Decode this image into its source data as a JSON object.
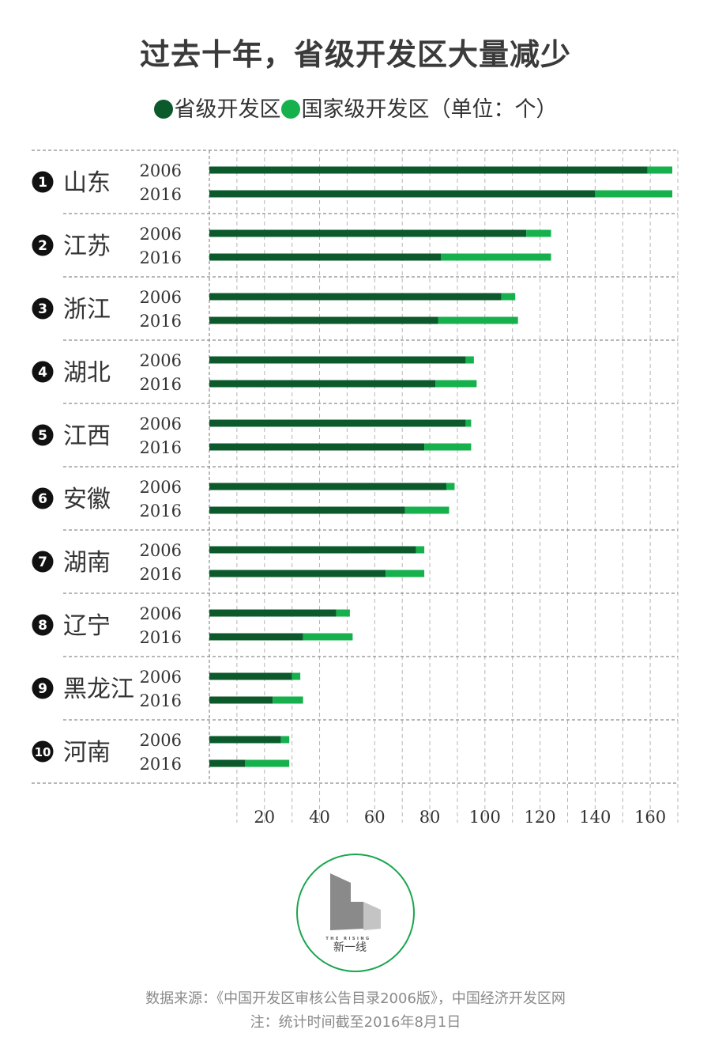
{
  "title": "过去十年，省级开发区大量减少",
  "legend": {
    "provincial": "省级开发区",
    "national": "国家级开发区",
    "unit": "（单位：个）"
  },
  "colors": {
    "provincial": "#0c5a2c",
    "national": "#16b04d",
    "logo_ring": "#19a64e",
    "logo_dark": "#8a8a8a",
    "logo_light": "#c4c4c4"
  },
  "chart_data": {
    "type": "bar",
    "orientation": "horizontal",
    "stacked": true,
    "xlim": [
      0,
      170
    ],
    "xticks": [
      20,
      40,
      60,
      80,
      100,
      120,
      140,
      160
    ],
    "series_names": [
      "省级开发区",
      "国家级开发区"
    ],
    "regions": [
      {
        "rank": "1",
        "name": "山东",
        "bars": [
          {
            "year": "2006",
            "provincial": 159,
            "national": 9
          },
          {
            "year": "2016",
            "provincial": 140,
            "national": 28
          }
        ]
      },
      {
        "rank": "2",
        "name": "江苏",
        "bars": [
          {
            "year": "2006",
            "provincial": 115,
            "national": 9
          },
          {
            "year": "2016",
            "provincial": 84,
            "national": 40
          }
        ]
      },
      {
        "rank": "3",
        "name": "浙江",
        "bars": [
          {
            "year": "2006",
            "provincial": 106,
            "national": 5
          },
          {
            "year": "2016",
            "provincial": 83,
            "national": 29
          }
        ]
      },
      {
        "rank": "4",
        "name": "湖北",
        "bars": [
          {
            "year": "2006",
            "provincial": 93,
            "national": 3
          },
          {
            "year": "2016",
            "provincial": 82,
            "national": 15
          }
        ]
      },
      {
        "rank": "5",
        "name": "江西",
        "bars": [
          {
            "year": "2006",
            "provincial": 93,
            "national": 2
          },
          {
            "year": "2016",
            "provincial": 78,
            "national": 17
          }
        ]
      },
      {
        "rank": "6",
        "name": "安徽",
        "bars": [
          {
            "year": "2006",
            "provincial": 86,
            "national": 3
          },
          {
            "year": "2016",
            "provincial": 71,
            "national": 16
          }
        ]
      },
      {
        "rank": "7",
        "name": "湖南",
        "bars": [
          {
            "year": "2006",
            "provincial": 75,
            "national": 3
          },
          {
            "year": "2016",
            "provincial": 64,
            "national": 14
          }
        ]
      },
      {
        "rank": "8",
        "name": "辽宁",
        "bars": [
          {
            "year": "2006",
            "provincial": 46,
            "national": 5
          },
          {
            "year": "2016",
            "provincial": 34,
            "national": 18
          }
        ]
      },
      {
        "rank": "9",
        "name": "黑龙江",
        "bars": [
          {
            "year": "2006",
            "provincial": 30,
            "national": 3
          },
          {
            "year": "2016",
            "provincial": 23,
            "national": 11
          }
        ]
      },
      {
        "rank": "10",
        "name": "河南",
        "bars": [
          {
            "year": "2006",
            "provincial": 26,
            "national": 3
          },
          {
            "year": "2016",
            "provincial": 13,
            "national": 16
          }
        ]
      }
    ]
  },
  "logo": {
    "brand_en": "THE RISING",
    "brand_cn": "新一线"
  },
  "footer": {
    "source": "数据来源：《中国开发区审核公告目录2006版》，中国经济开发区网",
    "note": "注：统计时间截至2016年8月1日"
  }
}
